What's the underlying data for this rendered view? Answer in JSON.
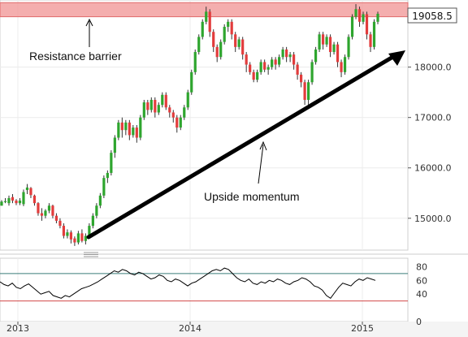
{
  "chart_data": [
    {
      "type": "candlestick",
      "y_axis_side": "right",
      "ylim": [
        14400,
        19300
      ],
      "y_ticks": [
        15000,
        16000,
        17000,
        18000
      ],
      "y_tick_labels": [
        "15000.0",
        "16000.0",
        "17000.0",
        "18000.0"
      ],
      "last_price": 19058.5,
      "last_price_label": "19058.5",
      "colors": {
        "up": "#2ea52e",
        "down": "#e23c3c",
        "resistance": "#f2a0a0"
      },
      "resistance_zone": [
        19000,
        19280
      ],
      "annotations": [
        {
          "text": "Resistance barrier"
        },
        {
          "text": "Upside momentum"
        }
      ],
      "trendline": {
        "from": [
          "2013-05",
          14450
        ],
        "to": [
          "2015-02",
          18350
        ]
      },
      "candles": [
        [
          15250,
          15330,
          15250,
          15360
        ],
        [
          15320,
          15340,
          15300,
          15400
        ],
        [
          15300,
          15400,
          15250,
          15450
        ],
        [
          15420,
          15350,
          15300,
          15480
        ],
        [
          15350,
          15300,
          15260,
          15380
        ],
        [
          15300,
          15350,
          15260,
          15400
        ],
        [
          15280,
          15520,
          15240,
          15570
        ],
        [
          15560,
          15610,
          15480,
          15680
        ],
        [
          15600,
          15460,
          15400,
          15620
        ],
        [
          15450,
          15300,
          15250,
          15470
        ],
        [
          15300,
          15100,
          15050,
          15320
        ],
        [
          15100,
          15050,
          14950,
          15200
        ],
        [
          15050,
          15150,
          15000,
          15180
        ],
        [
          15150,
          15250,
          15100,
          15300
        ],
        [
          15250,
          15050,
          15000,
          15270
        ],
        [
          15050,
          14950,
          14900,
          15100
        ],
        [
          14950,
          14850,
          14800,
          15000
        ],
        [
          14850,
          14650,
          14600,
          14900
        ],
        [
          14650,
          14720,
          14600,
          14780
        ],
        [
          14720,
          14580,
          14500,
          14760
        ],
        [
          14600,
          14520,
          14450,
          14640
        ],
        [
          14520,
          14700,
          14480,
          14750
        ],
        [
          14700,
          14550,
          14520,
          14780
        ],
        [
          14550,
          14650,
          14480,
          14700
        ],
        [
          14650,
          14850,
          14620,
          14900
        ],
        [
          14850,
          15050,
          14800,
          15100
        ],
        [
          15050,
          15250,
          15000,
          15300
        ],
        [
          15250,
          15450,
          15200,
          15500
        ],
        [
          15450,
          15800,
          15400,
          15850
        ],
        [
          15800,
          15900,
          15700,
          15950
        ],
        [
          15900,
          16300,
          15850,
          16350
        ],
        [
          16300,
          16600,
          16200,
          16650
        ],
        [
          16600,
          16900,
          16550,
          16950
        ],
        [
          16900,
          16750,
          16600,
          17000
        ],
        [
          16750,
          16900,
          16650,
          16950
        ],
        [
          16900,
          16650,
          16550,
          16950
        ],
        [
          16650,
          16800,
          16600,
          16850
        ],
        [
          16800,
          16600,
          16500,
          16850
        ],
        [
          16600,
          17000,
          16550,
          17050
        ],
        [
          17000,
          17300,
          16950,
          17350
        ],
        [
          17300,
          17150,
          17050,
          17350
        ],
        [
          17150,
          17350,
          17100,
          17400
        ],
        [
          17350,
          17100,
          17000,
          17400
        ],
        [
          17100,
          17250,
          17050,
          17300
        ],
        [
          17250,
          17450,
          17200,
          17500
        ],
        [
          17450,
          17200,
          17150,
          17500
        ],
        [
          17200,
          17100,
          17000,
          17250
        ],
        [
          17100,
          17000,
          16900,
          17150
        ],
        [
          17000,
          16800,
          16700,
          17050
        ],
        [
          16800,
          17000,
          16750,
          17050
        ],
        [
          17000,
          17200,
          16950,
          17250
        ],
        [
          17200,
          17500,
          17150,
          17550
        ],
        [
          17500,
          17900,
          17450,
          17950
        ],
        [
          17900,
          18300,
          17850,
          18350
        ],
        [
          18300,
          18600,
          18250,
          18650
        ],
        [
          18600,
          18900,
          18550,
          18950
        ],
        [
          18900,
          19100,
          18850,
          19200
        ],
        [
          19100,
          18700,
          18600,
          19150
        ],
        [
          18700,
          18400,
          18300,
          18750
        ],
        [
          18400,
          18200,
          18100,
          18450
        ],
        [
          18200,
          18500,
          18150,
          18550
        ],
        [
          18500,
          18800,
          18450,
          18850
        ],
        [
          18800,
          18900,
          18700,
          18950
        ],
        [
          18900,
          18650,
          18550,
          18950
        ],
        [
          18650,
          18400,
          18300,
          18700
        ],
        [
          18400,
          18550,
          18350,
          18600
        ],
        [
          18550,
          18250,
          18150,
          18600
        ],
        [
          18250,
          18050,
          17900,
          18300
        ],
        [
          18050,
          17900,
          17850,
          18100
        ],
        [
          17900,
          17750,
          17700,
          17950
        ],
        [
          17750,
          17900,
          17700,
          17950
        ],
        [
          17900,
          18100,
          17850,
          18150
        ],
        [
          18100,
          17950,
          17900,
          18150
        ],
        [
          17950,
          18000,
          17850,
          18050
        ],
        [
          18000,
          18150,
          17950,
          18200
        ],
        [
          18150,
          18050,
          17950,
          18200
        ],
        [
          18050,
          18200,
          18000,
          18250
        ],
        [
          18200,
          18350,
          18150,
          18400
        ],
        [
          18350,
          18200,
          18100,
          18400
        ],
        [
          18200,
          18250,
          18100,
          18300
        ],
        [
          18250,
          18050,
          17950,
          18300
        ],
        [
          18050,
          17850,
          17750,
          18100
        ],
        [
          17850,
          17700,
          17600,
          17900
        ],
        [
          17700,
          17350,
          17250,
          17750
        ],
        [
          17350,
          17700,
          17200,
          17750
        ],
        [
          17700,
          18100,
          17650,
          18150
        ],
        [
          18100,
          18350,
          18050,
          18400
        ],
        [
          18350,
          18650,
          18300,
          18700
        ],
        [
          18650,
          18450,
          18350,
          18700
        ],
        [
          18450,
          18600,
          18400,
          18650
        ],
        [
          18600,
          18300,
          18200,
          18650
        ],
        [
          18300,
          18450,
          18250,
          18500
        ],
        [
          18450,
          18100,
          18000,
          18500
        ],
        [
          18100,
          17900,
          17800,
          18150
        ],
        [
          17900,
          18200,
          17850,
          18250
        ],
        [
          18200,
          18600,
          18150,
          18650
        ],
        [
          18600,
          19000,
          18550,
          19050
        ],
        [
          19000,
          19150,
          18950,
          19250
        ],
        [
          19150,
          18900,
          18800,
          19200
        ],
        [
          18900,
          19050,
          18850,
          19100
        ],
        [
          19050,
          18650,
          18550,
          19100
        ],
        [
          18650,
          18400,
          18300,
          18700
        ],
        [
          18400,
          18900,
          18350,
          18950
        ],
        [
          18900,
          19058.5,
          18850,
          19100
        ]
      ]
    },
    {
      "type": "line",
      "name": "oscillator",
      "ylim": [
        0,
        90
      ],
      "y_ticks": [
        0,
        40,
        60,
        80
      ],
      "y_tick_labels": [
        "0",
        "40",
        "60",
        "80"
      ],
      "levels": [
        {
          "value": 70,
          "color": "#3a7d7a"
        },
        {
          "value": 30,
          "color": "#d24a4a"
        }
      ],
      "values": [
        58,
        54,
        52,
        56,
        50,
        48,
        52,
        55,
        50,
        45,
        40,
        42,
        44,
        38,
        36,
        34,
        38,
        36,
        40,
        44,
        48,
        50,
        52,
        55,
        58,
        62,
        66,
        70,
        74,
        72,
        76,
        74,
        70,
        68,
        72,
        70,
        66,
        62,
        64,
        68,
        66,
        60,
        58,
        62,
        60,
        56,
        52,
        56,
        58,
        62,
        66,
        70,
        74,
        76,
        74,
        78,
        76,
        70,
        64,
        60,
        58,
        62,
        56,
        54,
        58,
        56,
        60,
        58,
        62,
        60,
        56,
        54,
        58,
        60,
        64,
        62,
        58,
        52,
        50,
        46,
        38,
        34,
        42,
        50,
        56,
        54,
        52,
        58,
        62,
        60,
        64,
        62,
        60
      ],
      "x_axis_labels": [
        "2013",
        "2014",
        "2015"
      ]
    }
  ]
}
